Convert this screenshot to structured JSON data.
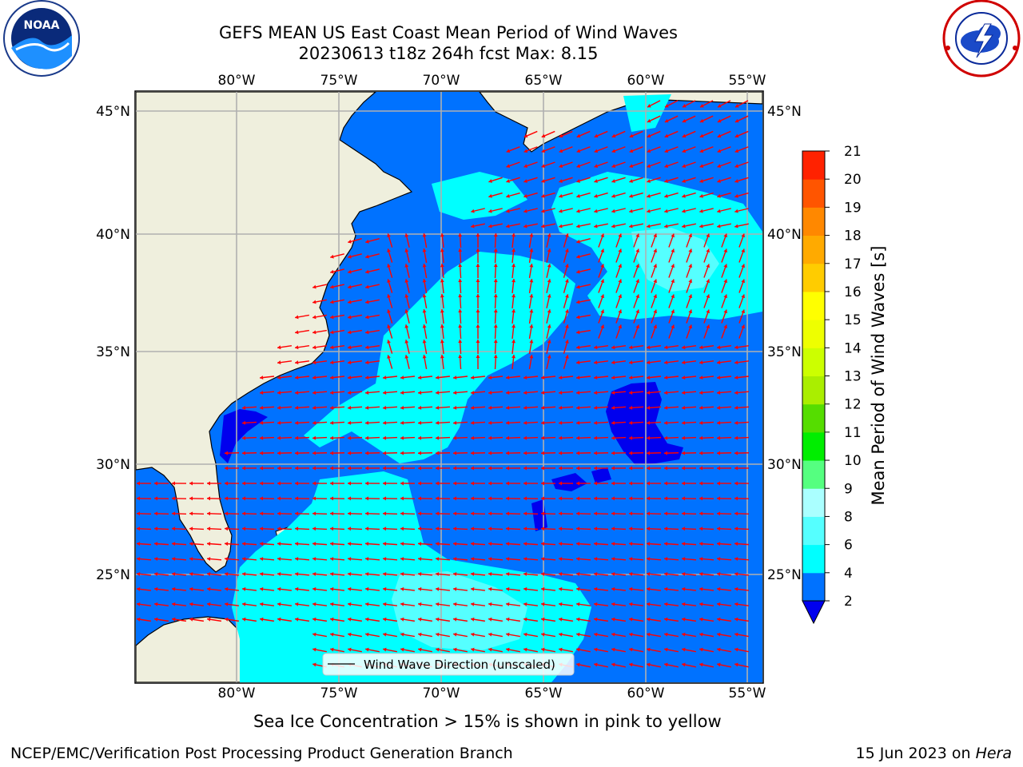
{
  "title": {
    "line1": "GEFS MEAN US East Coast Mean Period of Wind Waves",
    "line2": "20230613 t18z 264h fcst   Max: 8.15"
  },
  "map": {
    "lon_labels": [
      "80°W",
      "75°W",
      "70°W",
      "65°W",
      "60°W",
      "55°W"
    ],
    "lat_labels": [
      "45°N",
      "40°N",
      "35°N",
      "30°N",
      "25°N"
    ],
    "legend_label": "Wind Wave Direction (unscaled)",
    "ocean_colors": {
      "lt2": "#0000ee",
      "2to4": "#0072ff",
      "4to6": "#00ffff",
      "6to8": "#55ffff",
      "land": "#efefdd",
      "arrow": "#ff0000",
      "grid": "#b0b0b0"
    }
  },
  "colorbar": {
    "label": "Mean Period of Wind Waves [s]",
    "ticks": [
      "2",
      "4",
      "6",
      "8",
      "9",
      "10",
      "11",
      "12",
      "13",
      "14",
      "15",
      "16",
      "17",
      "18",
      "19",
      "20",
      "21"
    ],
    "colors": [
      "#0072ff",
      "#00ffff",
      "#55ffff",
      "#aaffff",
      "#55ff80",
      "#00ee00",
      "#55dd00",
      "#aaee00",
      "#ccff00",
      "#eeff00",
      "#ffff00",
      "#ffcc00",
      "#ffaa00",
      "#ff8800",
      "#ff5500",
      "#ff2200",
      "#ff0000"
    ],
    "under_color": "#0000ee"
  },
  "notes": {
    "sea_ice": "Sea Ice Concentration > 15% is shown in pink to yellow",
    "credit": "NCEP/EMC/Verification Post Processing Product Generation Branch",
    "date": "15 Jun 2023 on ",
    "machine": "Hera"
  },
  "logos": {
    "left": "NOAA",
    "right": "NATIONAL WEATHER SERVICE"
  }
}
